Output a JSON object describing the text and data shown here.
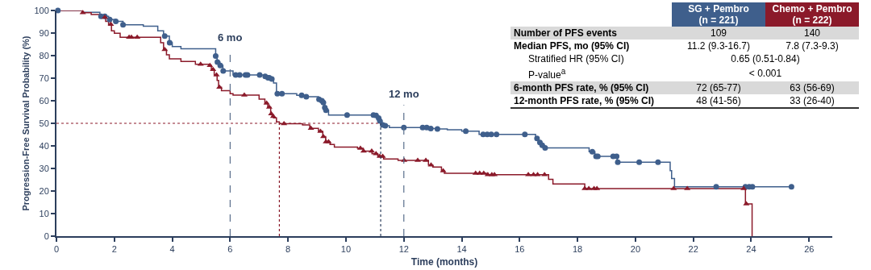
{
  "chart_data": [
    {
      "type": "step",
      "xlabel": "Time (months)",
      "ylabel": "Progression-Free Survival Probability (%)",
      "xlim": [
        0,
        26.8
      ],
      "xticks": [
        0,
        2,
        4,
        6,
        8,
        10,
        12,
        14,
        16,
        18,
        20,
        22,
        24,
        26
      ],
      "ylim": [
        0,
        100
      ],
      "yticks": [
        0,
        10,
        20,
        30,
        40,
        50,
        60,
        70,
        80,
        90,
        100
      ],
      "grid": false,
      "series": [
        {
          "type": "step",
          "color": "#3f5f8c",
          "marker": "none",
          "x": [
            0,
            0.9,
            1.5,
            1.8,
            2.0,
            2.3,
            3.0,
            3.5,
            3.7,
            3.9,
            4.0,
            4.3,
            5.2,
            5.5,
            5.55,
            5.65,
            5.75,
            6.1,
            7.2,
            7.3,
            7.4,
            7.5,
            7.6,
            8.3,
            8.6,
            9.05,
            9.15,
            9.2,
            9.25,
            9.3,
            9.4,
            11.0,
            11.1,
            11.15,
            11.25,
            11.35,
            11.5,
            12.9,
            13.1,
            13.5,
            14.0,
            14.6,
            16.55,
            16.65,
            16.75,
            16.85,
            18.4,
            18.6,
            19.37,
            21.2,
            21.25,
            21.35,
            25.4
          ],
          "values": [
            100,
            99.2,
            97.4,
            96,
            95.2,
            93.7,
            93,
            91,
            88.7,
            85.7,
            84,
            83,
            83,
            79.8,
            77.1,
            75.6,
            73.2,
            71.4,
            70.8,
            70.2,
            69.6,
            67.9,
            63.1,
            62.4,
            61.8,
            60.6,
            60,
            59.2,
            57,
            55.8,
            53.7,
            53.5,
            52.3,
            51.1,
            49.3,
            48.9,
            48.1,
            47.7,
            47.5,
            47.1,
            46.5,
            45.1,
            43.3,
            41.5,
            40.3,
            39.1,
            37.4,
            35.4,
            32.8,
            29,
            25.5,
            21.9,
            21.9
          ]
        },
        {
          "type": "step",
          "color": "#8b1a2a",
          "marker": "none",
          "x": [
            0,
            0.9,
            1.2,
            1.5,
            1.7,
            1.8,
            1.9,
            2.0,
            2.2,
            3.6,
            3.7,
            3.8,
            3.9,
            4.3,
            4.8,
            5.3,
            5.35,
            5.45,
            5.55,
            5.6,
            5.7,
            6.0,
            6.1,
            7.0,
            7.2,
            7.3,
            7.4,
            7.45,
            7.5,
            7.6,
            7.7,
            8.5,
            8.75,
            9.05,
            9.2,
            9.3,
            9.45,
            9.6,
            10.4,
            10.6,
            10.9,
            11.1,
            11.3,
            11.8,
            12.85,
            13.0,
            13.3,
            13.4,
            14.85,
            17.0,
            17.15,
            18.25,
            23.8,
            24.03
          ],
          "values": [
            100,
            99,
            98.2,
            97,
            95.2,
            93.8,
            91,
            89.9,
            88.1,
            85.7,
            82.7,
            80.4,
            78.6,
            77.4,
            76.2,
            75.6,
            73.8,
            71.4,
            69,
            66,
            64.5,
            63.1,
            62.5,
            60.7,
            58.9,
            57.1,
            54.2,
            53,
            52.4,
            50.6,
            49.8,
            49.3,
            47.8,
            46.4,
            44.1,
            41.8,
            40.6,
            39.5,
            38.9,
            37.7,
            36.5,
            35.4,
            34.2,
            33.6,
            31.5,
            30.6,
            28.9,
            27.9,
            27.2,
            25.2,
            23.1,
            21.1,
            14.3,
            0
          ]
        },
        {
          "type": "scatter",
          "color": "#3f5f8c",
          "marker": "circle",
          "x": [
            0.05,
            1.54,
            1.67,
            1.84,
            2.05,
            2.3,
            3.74,
            3.91,
            5.5,
            5.56,
            5.66,
            5.76,
            6.19,
            6.33,
            6.53,
            6.6,
            7.02,
            7.21,
            7.31,
            7.35,
            7.44,
            7.63,
            7.79,
            8.47,
            8.63,
            9.07,
            9.17,
            9.22,
            9.27,
            9.31,
            10.04,
            10.95,
            11.04,
            11.13,
            11.17,
            11.27,
            11.36,
            12.0,
            12.65,
            12.79,
            12.93,
            13.16,
            14.14,
            14.74,
            14.88,
            15.02,
            15.2,
            16.18,
            16.6,
            16.7,
            16.78,
            16.88,
            18.51,
            18.64,
            18.7,
            19.23,
            19.35,
            19.39,
            20.13,
            20.78,
            22.79,
            23.8,
            23.93,
            24.04,
            25.39
          ],
          "values": [
            100,
            97.4,
            97.4,
            96,
            95.2,
            93.7,
            88.7,
            85.7,
            79.8,
            77.1,
            75.6,
            73.2,
            71.4,
            71.4,
            71.4,
            71.4,
            71.4,
            70.8,
            70.2,
            70.2,
            69.6,
            63.1,
            63.1,
            62.4,
            61.8,
            60.6,
            60,
            59.2,
            57,
            55.8,
            53.7,
            53.7,
            53.5,
            52.3,
            51.1,
            49.3,
            48.9,
            48.1,
            48.1,
            48.1,
            47.7,
            47.5,
            46.5,
            45.1,
            45.1,
            45.1,
            45.1,
            45.1,
            43.3,
            41.5,
            40.3,
            39.1,
            37.4,
            35.4,
            35.4,
            35.4,
            35.4,
            32.8,
            32.8,
            32.8,
            21.9,
            21.9,
            21.9,
            21.9,
            21.9
          ]
        },
        {
          "type": "scatter",
          "color": "#8b1a2a",
          "marker": "triangle",
          "x": [
            0.91,
            1.67,
            1.88,
            2.51,
            2.59,
            2.79,
            3.74,
            4.98,
            5.3,
            5.35,
            5.41,
            5.53,
            5.63,
            6.49,
            7.26,
            7.35,
            7.42,
            7.49,
            7.83,
            7.86,
            8.79,
            9.12,
            9.22,
            9.31,
            9.4,
            10.5,
            10.61,
            10.89,
            11.04,
            11.17,
            11.27,
            12.01,
            12.48,
            12.76,
            12.94,
            13.36,
            14.48,
            14.62,
            14.76,
            14.9,
            15.04,
            15.13,
            16.3,
            16.48,
            16.62,
            16.86,
            18.25,
            18.39,
            18.57,
            18.67,
            21.32,
            21.79,
            23.74,
            23.83
          ],
          "values": [
            99,
            97,
            93.8,
            88.1,
            88.1,
            88.1,
            82.7,
            76.2,
            75.6,
            null,
            73.8,
            71.4,
            66,
            62.5,
            58.9,
            57.1,
            54.2,
            53,
            null,
            49.8,
            47.8,
            46.4,
            44.1,
            41.8,
            41.8,
            38.9,
            37.7,
            37.7,
            36.5,
            35.4,
            35.4,
            33.6,
            33.6,
            33.6,
            31.5,
            28.9,
            27.9,
            27.9,
            27.9,
            27.2,
            27.2,
            27.2,
            27.2,
            27.2,
            27.2,
            27.2,
            21.1,
            21.1,
            21.1,
            21.1,
            21.1,
            21.1,
            21.1,
            14.3
          ]
        }
      ],
      "ref_lines": [
        {
          "axis": "x",
          "value": 6,
          "label": "6 mo",
          "color": "#5a6f8c",
          "line_style": "dashed"
        },
        {
          "axis": "x",
          "value": 12,
          "label": "12 mo",
          "color": "#5a6f8c",
          "line_style": "dashed"
        },
        {
          "axis": "x",
          "value": 7.7,
          "color": "#8b1a2a",
          "line_style": "dotted"
        },
        {
          "axis": "x",
          "value": 11.2,
          "color": "#2c3e5c",
          "line_style": "dotted"
        },
        {
          "axis": "y",
          "value": 50,
          "color": "#8b1a2a",
          "line_style": "dotted"
        }
      ]
    },
    {
      "type": "other",
      "categories": [
        "SG + Pembro (n = 221)",
        "Chemo + Pembro (n = 222)"
      ],
      "colors": [
        "#3f5f8c",
        "#8b1a2a"
      ],
      "y_categories": [
        "Number of PFS events",
        "Median PFS, mo (95% CI)",
        "Stratified HR (95% CI)",
        "P-value$^{a}$",
        "6-month PFS rate, % (95% CI)",
        "12-month PFS rate, % (95% CI)"
      ],
      "cell_labels": [
        [
          "109",
          "140"
        ],
        [
          "11.2 (9.3-16.7)",
          "7.8 (7.3-9.3)"
        ],
        [
          "0.65 (0.51-0.84)"
        ],
        [
          "< 0.001"
        ],
        [
          "72 (65-77)",
          "63 (56-69)"
        ],
        [
          "48 (41-56)",
          "33 (26-40)"
        ]
      ]
    }
  ]
}
